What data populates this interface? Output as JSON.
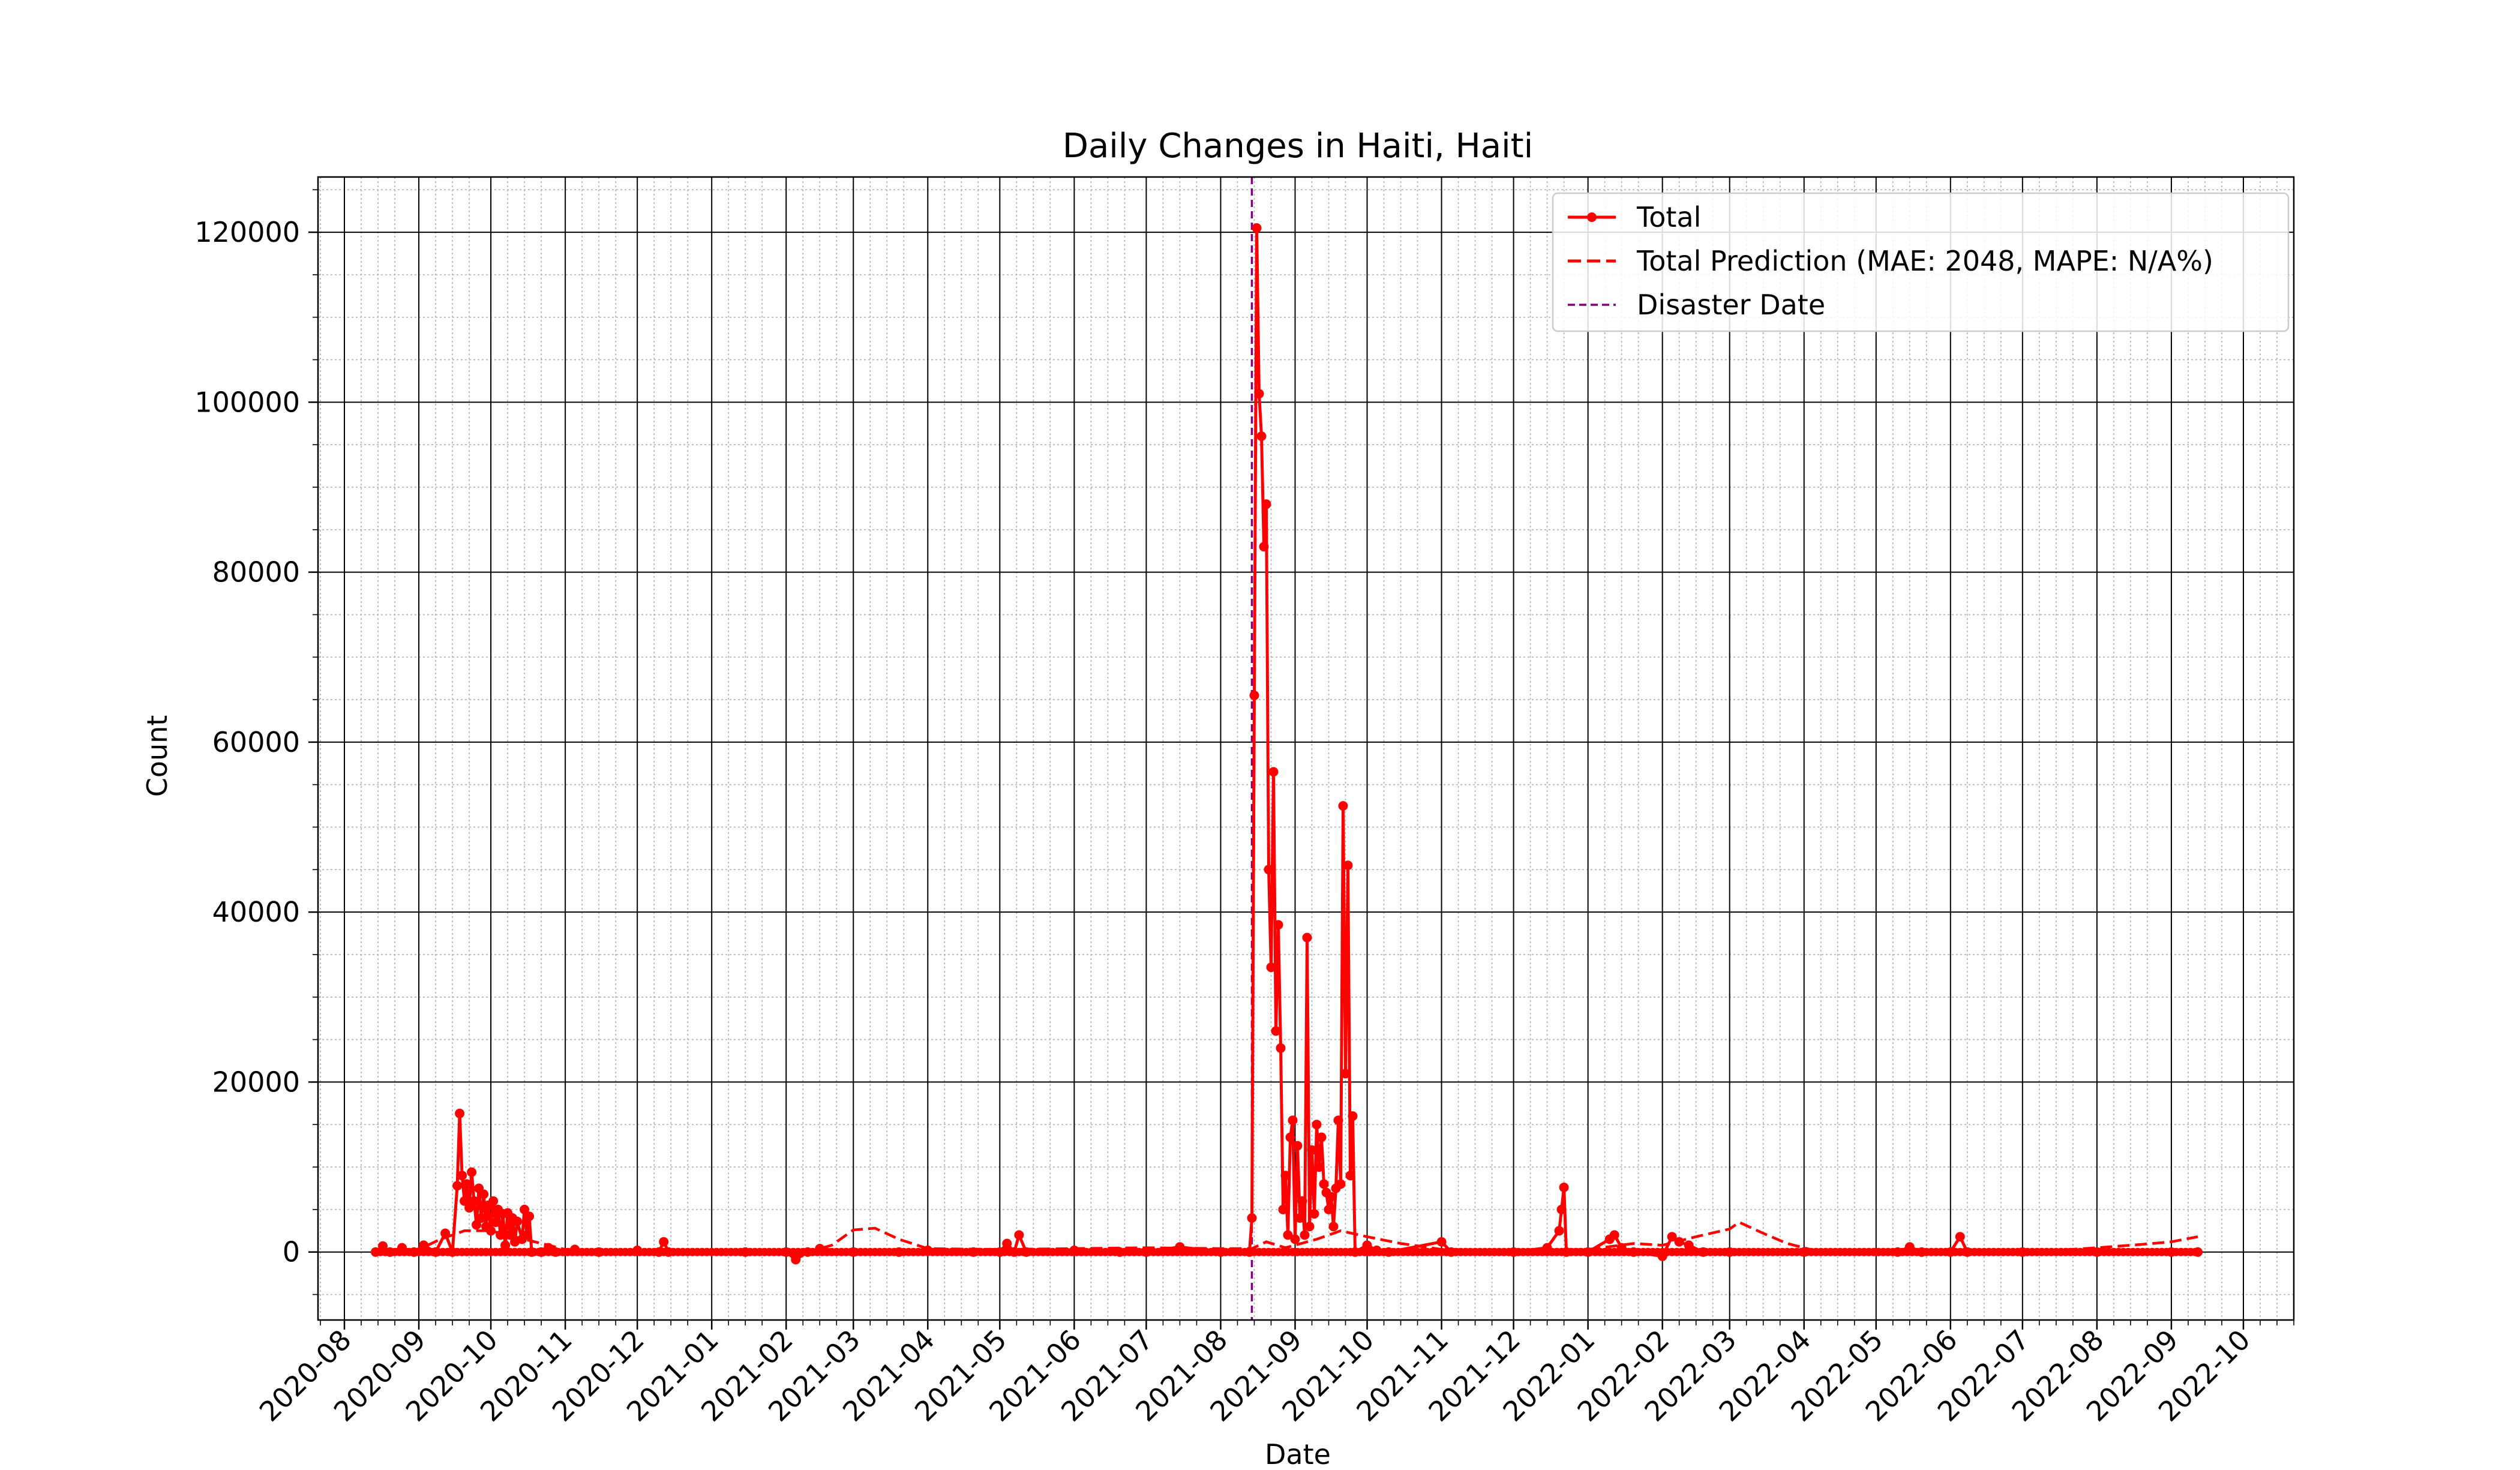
{
  "chart_data": {
    "type": "line",
    "title": "Daily Changes in Haiti, Haiti",
    "xlabel": "Date",
    "ylabel": "Count",
    "xlim": [
      "2020-07-21",
      "2022-10-22"
    ],
    "ylim": [
      -8000,
      126500
    ],
    "x_ticks": [
      "2020-08-01",
      "2020-09-01",
      "2020-10-01",
      "2020-11-01",
      "2020-12-01",
      "2021-01-01",
      "2021-02-01",
      "2021-03-01",
      "2021-04-01",
      "2021-05-01",
      "2021-06-01",
      "2021-07-01",
      "2021-08-01",
      "2021-09-01",
      "2021-10-01",
      "2021-11-01",
      "2021-12-01",
      "2022-01-01",
      "2022-02-01",
      "2022-03-01",
      "2022-04-01",
      "2022-05-01",
      "2022-06-01",
      "2022-07-01",
      "2022-08-01",
      "2022-09-01",
      "2022-10-01"
    ],
    "x_tick_labels": [
      "2020-08",
      "2020-09",
      "2020-10",
      "2020-11",
      "2020-12",
      "2021-01",
      "2021-02",
      "2021-03",
      "2021-04",
      "2021-05",
      "2021-06",
      "2021-07",
      "2021-08",
      "2021-09",
      "2021-10",
      "2021-11",
      "2021-12",
      "2022-01",
      "2022-02",
      "2022-03",
      "2022-04",
      "2022-05",
      "2022-06",
      "2022-07",
      "2022-08",
      "2022-09",
      "2022-10"
    ],
    "y_ticks": [
      0,
      20000,
      40000,
      60000,
      80000,
      100000,
      120000
    ],
    "y_tick_labels": [
      "0",
      "20000",
      "40000",
      "60000",
      "80000",
      "100000",
      "120000"
    ],
    "grid": true,
    "legend_position": "top-right",
    "disaster_date": "2021-08-14",
    "series": [
      {
        "name": "Total",
        "style": "solid-marker",
        "color": "#ff0000",
        "points": [
          [
            "2020-08-14",
            0
          ],
          [
            "2020-08-17",
            700
          ],
          [
            "2020-08-20",
            0
          ],
          [
            "2020-08-25",
            500
          ],
          [
            "2020-08-30",
            0
          ],
          [
            "2020-09-03",
            800
          ],
          [
            "2020-09-08",
            0
          ],
          [
            "2020-09-12",
            2200
          ],
          [
            "2020-09-15",
            0
          ],
          [
            "2020-09-17",
            7800
          ],
          [
            "2020-09-18",
            16300
          ],
          [
            "2020-09-19",
            9000
          ],
          [
            "2020-09-20",
            6000
          ],
          [
            "2020-09-21",
            8000
          ],
          [
            "2020-09-22",
            5200
          ],
          [
            "2020-09-23",
            9400
          ],
          [
            "2020-09-24",
            6000
          ],
          [
            "2020-09-25",
            3200
          ],
          [
            "2020-09-26",
            7500
          ],
          [
            "2020-09-27",
            4000
          ],
          [
            "2020-09-28",
            6800
          ],
          [
            "2020-09-29",
            3000
          ],
          [
            "2020-09-30",
            5500
          ],
          [
            "2020-10-01",
            2500
          ],
          [
            "2020-10-02",
            6000
          ],
          [
            "2020-10-03",
            3500
          ],
          [
            "2020-10-04",
            5000
          ],
          [
            "2020-10-05",
            2000
          ],
          [
            "2020-10-06",
            4500
          ],
          [
            "2020-10-07",
            800
          ],
          [
            "2020-10-08",
            4600
          ],
          [
            "2020-10-09",
            2000
          ],
          [
            "2020-10-10",
            4000
          ],
          [
            "2020-10-11",
            1200
          ],
          [
            "2020-10-12",
            3600
          ],
          [
            "2020-10-14",
            1500
          ],
          [
            "2020-10-15",
            5000
          ],
          [
            "2020-10-16",
            2000
          ],
          [
            "2020-10-17",
            4200
          ],
          [
            "2020-10-18",
            0
          ],
          [
            "2020-10-22",
            0
          ],
          [
            "2020-10-25",
            500
          ],
          [
            "2020-10-28",
            0
          ],
          [
            "2020-11-05",
            300
          ],
          [
            "2020-11-15",
            0
          ],
          [
            "2020-12-01",
            200
          ],
          [
            "2020-12-10",
            0
          ],
          [
            "2020-12-12",
            1200
          ],
          [
            "2020-12-14",
            0
          ],
          [
            "2021-01-15",
            0
          ],
          [
            "2021-02-01",
            0
          ],
          [
            "2021-02-05",
            -900
          ],
          [
            "2021-02-10",
            0
          ],
          [
            "2021-02-15",
            400
          ],
          [
            "2021-03-01",
            0
          ],
          [
            "2021-03-20",
            0
          ],
          [
            "2021-04-01",
            200
          ],
          [
            "2021-04-20",
            0
          ],
          [
            "2021-05-01",
            0
          ],
          [
            "2021-05-04",
            1000
          ],
          [
            "2021-05-07",
            0
          ],
          [
            "2021-05-09",
            2000
          ],
          [
            "2021-05-12",
            0
          ],
          [
            "2021-06-01",
            200
          ],
          [
            "2021-06-20",
            0
          ],
          [
            "2021-07-01",
            0
          ],
          [
            "2021-07-15",
            600
          ],
          [
            "2021-08-01",
            0
          ],
          [
            "2021-08-13",
            0
          ],
          [
            "2021-08-14",
            4000
          ],
          [
            "2021-08-15",
            65500
          ],
          [
            "2021-08-16",
            120500
          ],
          [
            "2021-08-17",
            101000
          ],
          [
            "2021-08-18",
            96000
          ],
          [
            "2021-08-19",
            83000
          ],
          [
            "2021-08-20",
            88000
          ],
          [
            "2021-08-21",
            45000
          ],
          [
            "2021-08-22",
            33500
          ],
          [
            "2021-08-23",
            56500
          ],
          [
            "2021-08-24",
            26000
          ],
          [
            "2021-08-25",
            38500
          ],
          [
            "2021-08-26",
            24000
          ],
          [
            "2021-08-27",
            5000
          ],
          [
            "2021-08-28",
            9000
          ],
          [
            "2021-08-29",
            2000
          ],
          [
            "2021-08-30",
            13500
          ],
          [
            "2021-08-31",
            15500
          ],
          [
            "2021-09-01",
            1500
          ],
          [
            "2021-09-02",
            12500
          ],
          [
            "2021-09-03",
            4000
          ],
          [
            "2021-09-04",
            6000
          ],
          [
            "2021-09-05",
            2000
          ],
          [
            "2021-09-06",
            37000
          ],
          [
            "2021-09-07",
            3000
          ],
          [
            "2021-09-08",
            12000
          ],
          [
            "2021-09-09",
            4500
          ],
          [
            "2021-09-10",
            15000
          ],
          [
            "2021-09-11",
            10000
          ],
          [
            "2021-09-12",
            13500
          ],
          [
            "2021-09-13",
            8000
          ],
          [
            "2021-09-14",
            7000
          ],
          [
            "2021-09-15",
            5000
          ],
          [
            "2021-09-16",
            6500
          ],
          [
            "2021-09-17",
            3000
          ],
          [
            "2021-09-18",
            7500
          ],
          [
            "2021-09-19",
            15500
          ],
          [
            "2021-09-20",
            8000
          ],
          [
            "2021-09-21",
            52500
          ],
          [
            "2021-09-22",
            21000
          ],
          [
            "2021-09-23",
            45500
          ],
          [
            "2021-09-24",
            9000
          ],
          [
            "2021-09-25",
            16000
          ],
          [
            "2021-09-26",
            0
          ],
          [
            "2021-10-01",
            800
          ],
          [
            "2021-10-05",
            200
          ],
          [
            "2021-10-10",
            0
          ],
          [
            "2021-11-01",
            1200
          ],
          [
            "2021-11-05",
            0
          ],
          [
            "2021-12-01",
            0
          ],
          [
            "2021-12-15",
            500
          ],
          [
            "2021-12-20",
            2500
          ],
          [
            "2021-12-21",
            5000
          ],
          [
            "2021-12-22",
            7600
          ],
          [
            "2021-12-23",
            0
          ],
          [
            "2022-01-01",
            0
          ],
          [
            "2022-01-10",
            1500
          ],
          [
            "2022-01-12",
            2000
          ],
          [
            "2022-01-15",
            500
          ],
          [
            "2022-01-20",
            0
          ],
          [
            "2022-02-01",
            -500
          ],
          [
            "2022-02-05",
            1800
          ],
          [
            "2022-02-08",
            1200
          ],
          [
            "2022-02-12",
            800
          ],
          [
            "2022-02-18",
            0
          ],
          [
            "2022-03-01",
            0
          ],
          [
            "2022-04-01",
            0
          ],
          [
            "2022-05-10",
            0
          ],
          [
            "2022-05-15",
            600
          ],
          [
            "2022-05-20",
            0
          ],
          [
            "2022-06-01",
            0
          ],
          [
            "2022-06-05",
            1800
          ],
          [
            "2022-06-08",
            0
          ],
          [
            "2022-07-01",
            0
          ],
          [
            "2022-08-01",
            0
          ],
          [
            "2022-09-01",
            0
          ],
          [
            "2022-09-12",
            0
          ]
        ]
      },
      {
        "name": "Total Prediction (MAE: 2048, MAPE: N/A%)",
        "style": "dashed",
        "color": "#ff0000",
        "points": [
          [
            "2020-08-14",
            0
          ],
          [
            "2020-09-01",
            300
          ],
          [
            "2020-09-10",
            1500
          ],
          [
            "2020-09-20",
            2500
          ],
          [
            "2020-10-01",
            2500
          ],
          [
            "2020-10-15",
            1500
          ],
          [
            "2020-11-01",
            300
          ],
          [
            "2021-01-01",
            0
          ],
          [
            "2021-02-10",
            0
          ],
          [
            "2021-02-20",
            800
          ],
          [
            "2021-03-01",
            2600
          ],
          [
            "2021-03-10",
            2800
          ],
          [
            "2021-03-20",
            1500
          ],
          [
            "2021-04-01",
            400
          ],
          [
            "2021-05-01",
            300
          ],
          [
            "2021-06-01",
            400
          ],
          [
            "2021-07-01",
            500
          ],
          [
            "2021-08-01",
            400
          ],
          [
            "2021-08-14",
            400
          ],
          [
            "2021-08-20",
            1200
          ],
          [
            "2021-08-28",
            500
          ],
          [
            "2021-09-10",
            1500
          ],
          [
            "2021-09-20",
            2500
          ],
          [
            "2021-10-01",
            1800
          ],
          [
            "2021-10-15",
            1000
          ],
          [
            "2021-11-01",
            300
          ],
          [
            "2021-12-01",
            200
          ],
          [
            "2022-01-01",
            300
          ],
          [
            "2022-01-20",
            1000
          ],
          [
            "2022-02-01",
            800
          ],
          [
            "2022-02-15",
            1800
          ],
          [
            "2022-03-01",
            2700
          ],
          [
            "2022-03-05",
            3500
          ],
          [
            "2022-03-15",
            2200
          ],
          [
            "2022-03-25",
            1000
          ],
          [
            "2022-04-05",
            200
          ],
          [
            "2022-05-01",
            0
          ],
          [
            "2022-06-01",
            0
          ],
          [
            "2022-07-15",
            200
          ],
          [
            "2022-08-01",
            500
          ],
          [
            "2022-08-20",
            900
          ],
          [
            "2022-09-01",
            1200
          ],
          [
            "2022-09-12",
            1800
          ]
        ]
      }
    ],
    "vline_legend": "Disaster Date",
    "vline_color": "#800080"
  }
}
